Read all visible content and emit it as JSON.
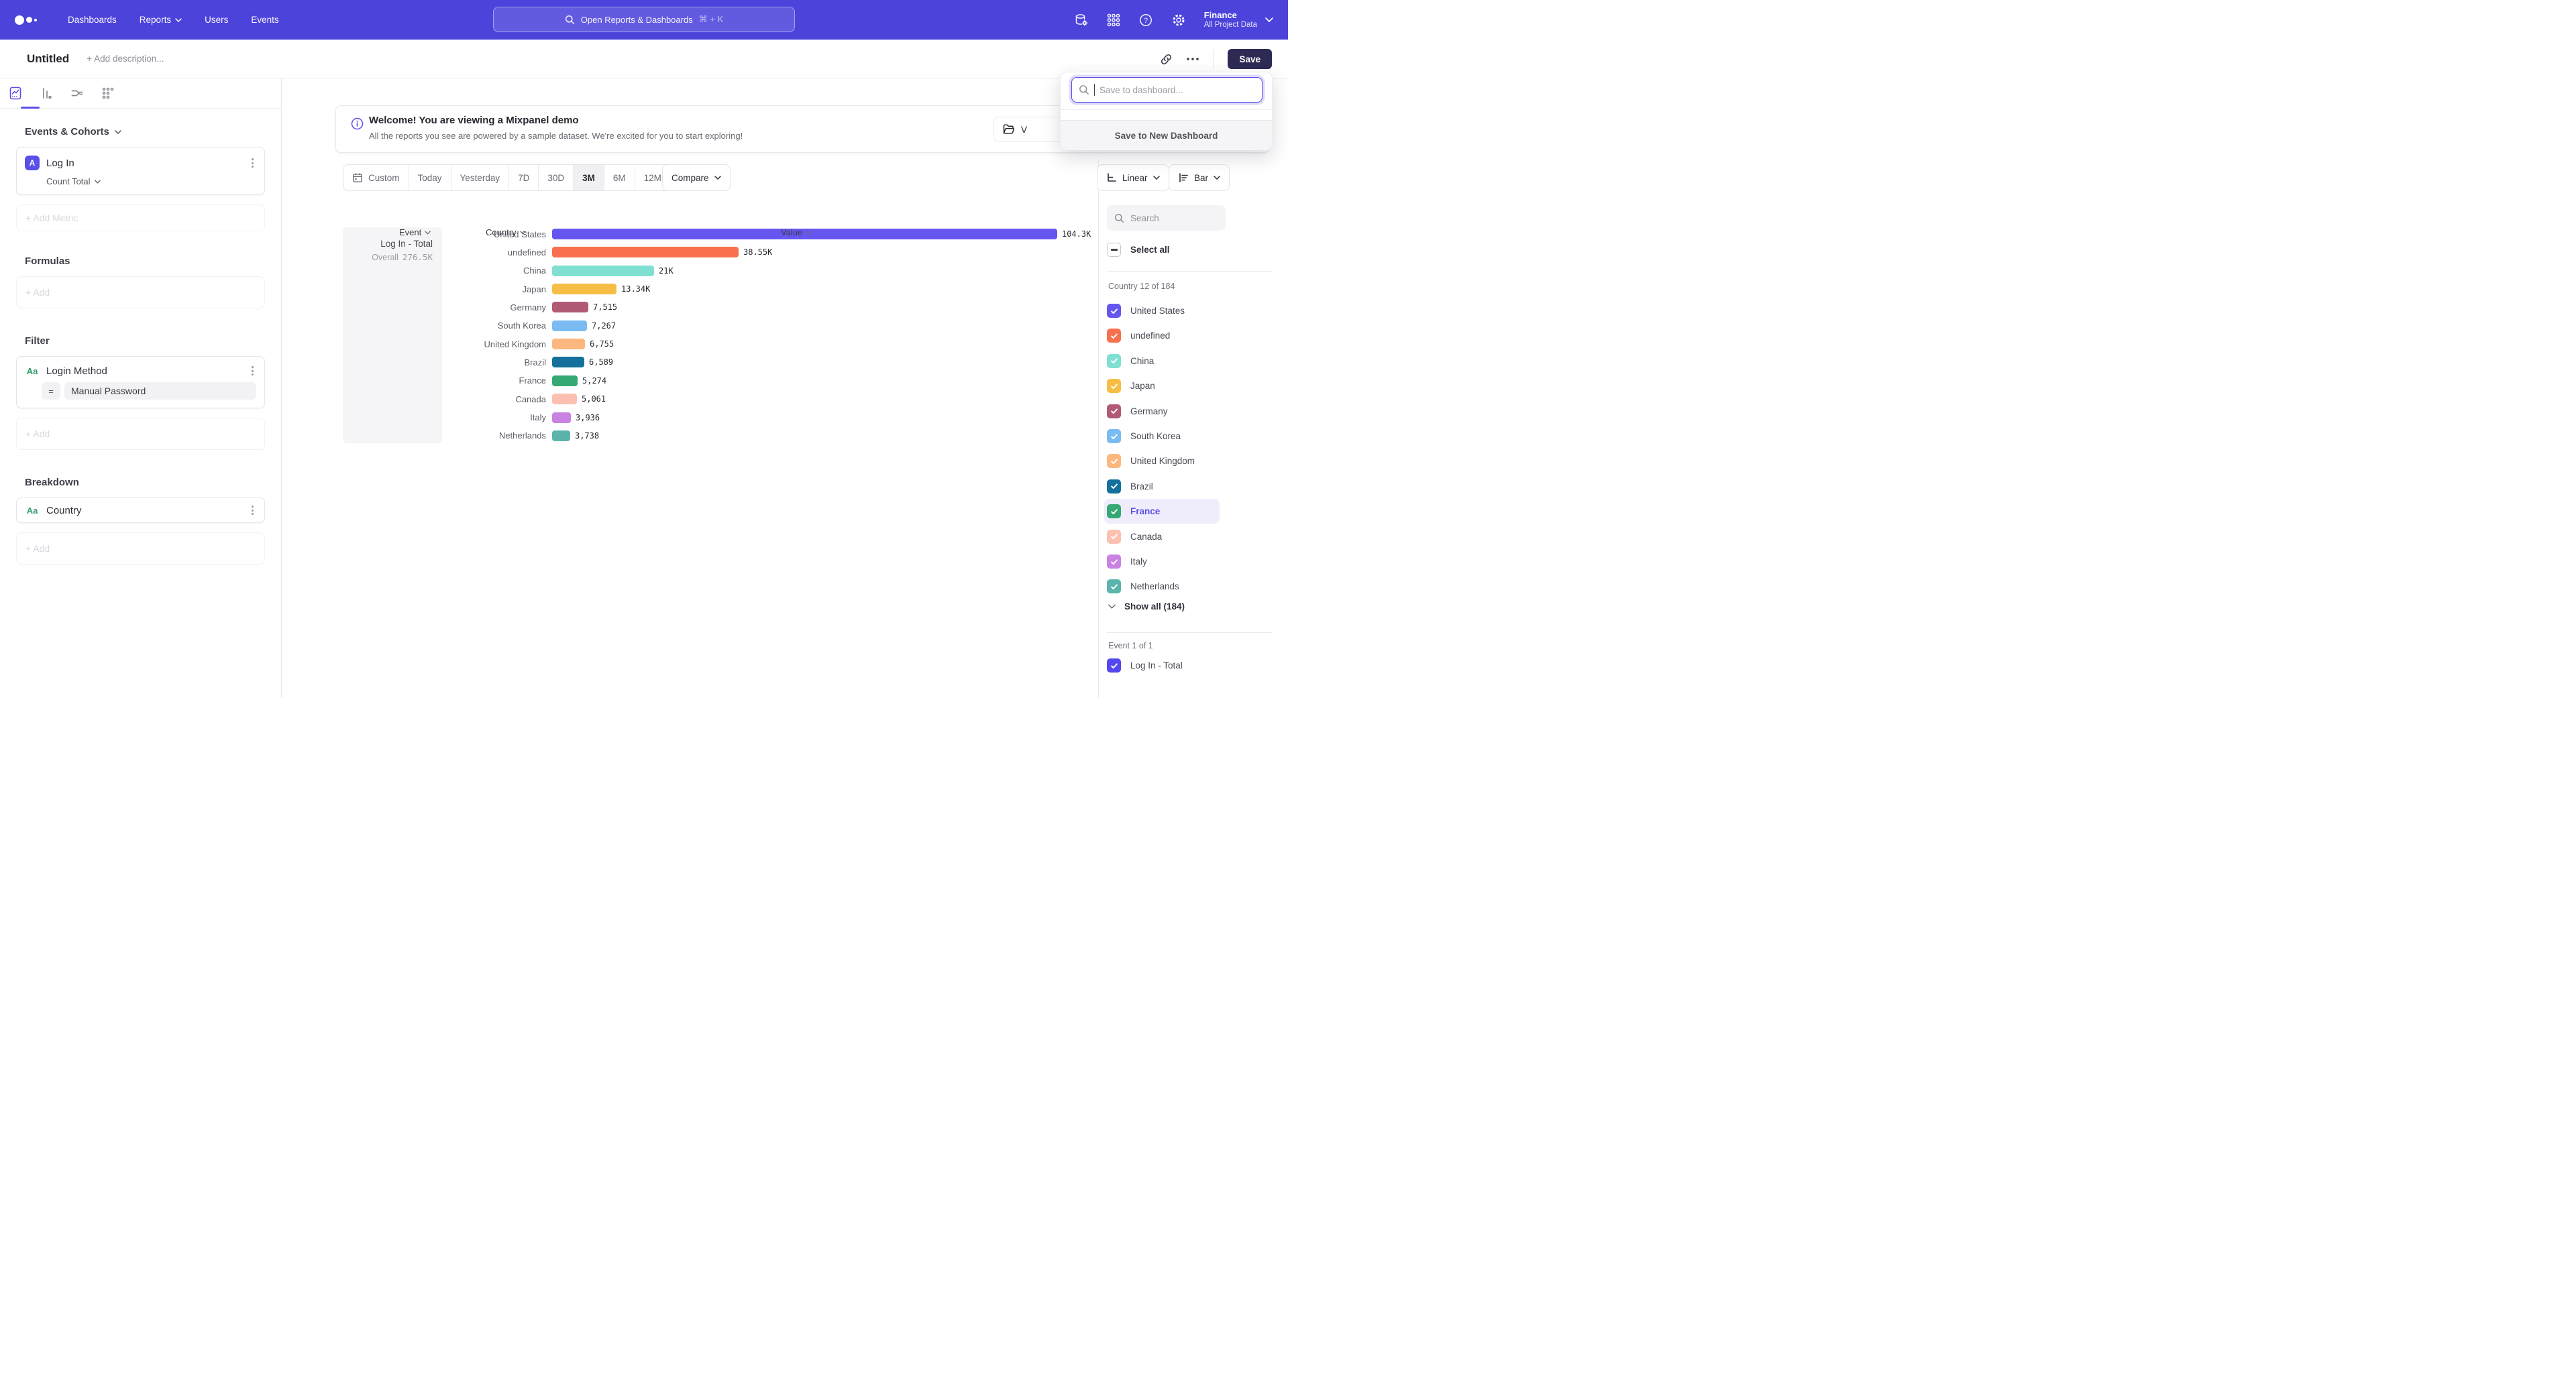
{
  "nav": {
    "menu": [
      "Dashboards",
      "Reports",
      "Users",
      "Events"
    ],
    "search_placeholder": "Open Reports & Dashboards",
    "search_shortcut": "⌘ + K",
    "project_name": "Finance",
    "project_scope": "All Project Data"
  },
  "header": {
    "title": "Untitled",
    "description_placeholder": "+ Add description...",
    "save_label": "Save"
  },
  "save_popover": {
    "input_placeholder": "Save to dashboard...",
    "new_dashboard_label": "Save to New Dashboard"
  },
  "builder": {
    "events_header": "Events & Cohorts",
    "metric": {
      "badge": "A",
      "name": "Log In",
      "aggregation": "Count Total"
    },
    "add_metric_label": "+ Add Metric",
    "formulas_header": "Formulas",
    "formulas_add_label": "+ Add",
    "filter_header": "Filter",
    "filter": {
      "type_icon": "Aa",
      "name": "Login Method",
      "operator": "=",
      "value": "Manual Password"
    },
    "filter_add_label": "+ Add",
    "breakdown_header": "Breakdown",
    "breakdown": {
      "type_icon": "Aa",
      "name": "Country"
    },
    "breakdown_add_label": "+ Add"
  },
  "banner": {
    "title": "Welcome! You are viewing a Mixpanel demo",
    "subtitle": "All the reports you see are powered by a sample dataset. We're excited for you to start exploring!",
    "action_visible_text": "V"
  },
  "toolbar": {
    "date_ranges": [
      "Custom",
      "Today",
      "Yesterday",
      "7D",
      "30D",
      "3M",
      "6M",
      "12M"
    ],
    "selected_range": "3M",
    "compare_label": "Compare",
    "scale_label": "Linear",
    "chart_type_label": "Bar"
  },
  "table": {
    "col_event": "Event",
    "col_country": "Country",
    "col_value": "Value",
    "event_title": "Log In - Total",
    "overall_label": "Overall",
    "overall_value": "276.5K"
  },
  "chart_data": {
    "type": "bar",
    "series_name": "Log In - Total",
    "orientation": "horizontal",
    "categories": [
      "United States",
      "undefined",
      "China",
      "Japan",
      "Germany",
      "South Korea",
      "United Kingdom",
      "Brazil",
      "France",
      "Canada",
      "Italy",
      "Netherlands"
    ],
    "values": [
      104300,
      38550,
      21000,
      13340,
      7515,
      7267,
      6755,
      6589,
      5274,
      5061,
      3936,
      3738
    ],
    "value_labels": [
      "104.3K",
      "38.55K",
      "21K",
      "13.34K",
      "7,515",
      "7,267",
      "6,755",
      "6,589",
      "5,274",
      "5,061",
      "3,936",
      "3,738"
    ],
    "colors": [
      "#6656F0",
      "#F9704E",
      "#7FE0D1",
      "#F6BE44",
      "#B15A73",
      "#7ABCF2",
      "#FBB77E",
      "#15719B",
      "#36A873",
      "#FCC0B1",
      "#C981E2",
      "#5BB4AB"
    ],
    "overall_total": "276.5K",
    "xlim": [
      0,
      104300
    ]
  },
  "right_panel": {
    "search_placeholder": "Search",
    "select_all_label": "Select all",
    "group_label": "Country 12 of 184",
    "items": [
      {
        "label": "United States",
        "color": "#6656F0",
        "checked": true,
        "highlighted": false
      },
      {
        "label": "undefined",
        "color": "#F9704E",
        "checked": true,
        "highlighted": false
      },
      {
        "label": "China",
        "color": "#7FE0D1",
        "checked": true,
        "highlighted": false
      },
      {
        "label": "Japan",
        "color": "#F6BE44",
        "checked": true,
        "highlighted": false
      },
      {
        "label": "Germany",
        "color": "#B15A73",
        "checked": true,
        "highlighted": false
      },
      {
        "label": "South Korea",
        "color": "#7ABCF2",
        "checked": true,
        "highlighted": false
      },
      {
        "label": "United Kingdom",
        "color": "#FBB77E",
        "checked": true,
        "highlighted": false
      },
      {
        "label": "Brazil",
        "color": "#15719B",
        "checked": true,
        "highlighted": false
      },
      {
        "label": "France",
        "color": "#36A873",
        "checked": true,
        "highlighted": true
      },
      {
        "label": "Canada",
        "color": "#FCC0B1",
        "checked": true,
        "highlighted": false
      },
      {
        "label": "Italy",
        "color": "#C981E2",
        "checked": true,
        "highlighted": false
      },
      {
        "label": "Netherlands",
        "color": "#5BB4AB",
        "checked": true,
        "highlighted": false
      }
    ],
    "show_all_label": "Show all (184)",
    "event_group_label": "Event 1 of 1",
    "event_item_label": "Log In - Total",
    "event_item_color": "#5447EE"
  }
}
